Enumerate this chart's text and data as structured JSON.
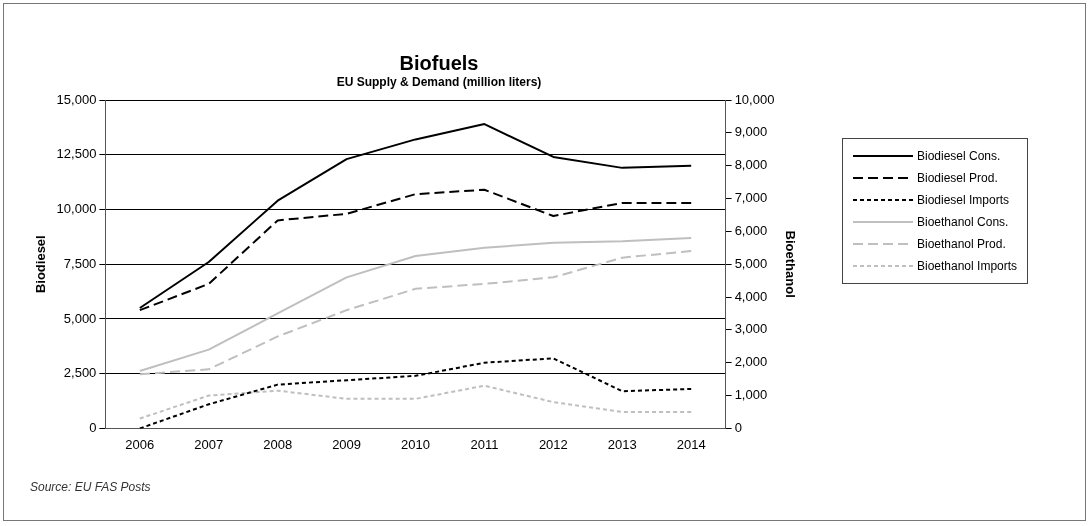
{
  "chart_data": {
    "type": "line",
    "title": "Biofuels",
    "subtitle": "EU Supply & Demand (million liters)",
    "ylabel": "Biodiesel",
    "y2label": "Bioethanol",
    "categories": [
      "2006",
      "2007",
      "2008",
      "2009",
      "2010",
      "2011",
      "2012",
      "2013",
      "2014"
    ],
    "series": [
      {
        "name": "Biodiesel Cons.",
        "color": "#000000",
        "line_style": "solid",
        "values": [
          5500,
          7600,
          10400,
          12300,
          13200,
          13900,
          12400,
          11900,
          12000
        ]
      },
      {
        "name": "Biodiesel Prod.",
        "color": "#000000",
        "line_style": "dashed",
        "values": [
          5400,
          6600,
          9500,
          9800,
          10700,
          10900,
          9700,
          10300,
          10300
        ]
      },
      {
        "name": "Biodiesel Imports",
        "color": "#000000",
        "line_style": "dotted",
        "values": [
          0,
          1100,
          2000,
          2200,
          2400,
          3000,
          3200,
          1700,
          1800
        ]
      },
      {
        "name": "Bioethanol Cons.",
        "color": "#bfbfbf",
        "line_style": "solid",
        "axis": "y2",
        "values": [
          1750,
          2400,
          3500,
          4600,
          5250,
          5500,
          5650,
          5700,
          5800
        ]
      },
      {
        "name": "Bioethanol Prod.",
        "color": "#bfbfbf",
        "line_style": "dashed",
        "axis": "y2",
        "values": [
          1650,
          1800,
          2800,
          3600,
          4250,
          4400,
          4600,
          5200,
          5400
        ]
      },
      {
        "name": "Bioethanol Imports",
        "color": "#bfbfbf",
        "line_style": "dotted",
        "axis": "y2",
        "values": [
          300,
          1000,
          1150,
          900,
          900,
          1300,
          800,
          500,
          500
        ]
      }
    ],
    "ylim": [
      0,
      15000
    ],
    "yticks": [
      0,
      {
        "value": 2500,
        "label": "2,500"
      },
      {
        "value": 5000,
        "label": "5,000"
      },
      {
        "value": 7500,
        "label": "7,500"
      },
      {
        "value": 10000,
        "label": "10,000"
      },
      {
        "value": 12500,
        "label": "12,500"
      },
      {
        "value": 15000,
        "label": "15,000"
      }
    ],
    "y2lim": [
      0,
      10000
    ],
    "y2ticks": [
      0,
      {
        "value": 1000,
        "label": "1,000"
      },
      {
        "value": 2000,
        "label": "2,000"
      },
      {
        "value": 3000,
        "label": "3,000"
      },
      {
        "value": 4000,
        "label": "4,000"
      },
      {
        "value": 5000,
        "label": "5,000"
      },
      {
        "value": 6000,
        "label": "6,000"
      },
      {
        "value": 7000,
        "label": "7,000"
      },
      {
        "value": 8000,
        "label": "8,000"
      },
      {
        "value": 9000,
        "label": "9,000"
      },
      {
        "value": 10000,
        "label": "10,000"
      }
    ],
    "grid": "y",
    "legend": "right",
    "marker": "none",
    "annotations": [
      "Source: EU FAS Posts"
    ]
  }
}
